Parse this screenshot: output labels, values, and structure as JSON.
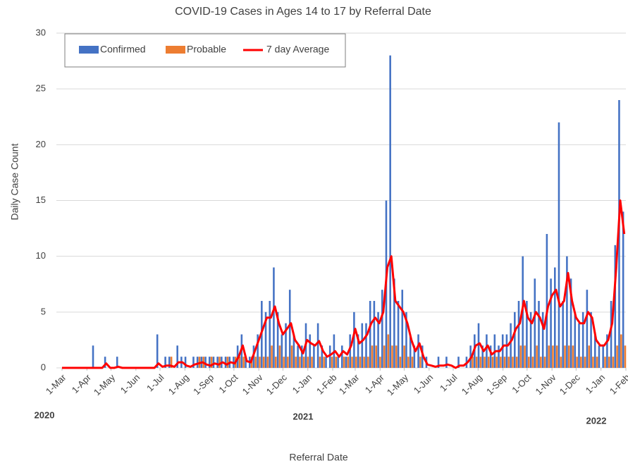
{
  "chart_data": {
    "type": "bar_line",
    "title": "COVID-19 Cases in Ages 14 to 17 by Referral Date",
    "x_label": "Referral Date",
    "y_label": "Daily Case Count",
    "annotations": [
      "2020",
      "2021",
      "2022"
    ],
    "x": [
      0,
      5,
      10,
      15,
      20,
      25,
      30,
      35,
      40,
      45,
      50,
      55,
      60,
      65,
      70,
      75,
      80,
      85,
      90,
      95,
      100,
      105,
      110,
      115,
      120,
      125,
      130,
      135,
      140,
      145,
      150,
      155,
      160,
      165,
      170,
      175,
      180,
      185,
      190,
      195,
      200,
      205,
      210,
      215,
      220,
      225,
      230,
      235,
      240,
      245,
      250,
      255,
      260,
      265,
      270,
      275,
      280,
      285,
      290,
      295,
      300,
      305,
      310,
      315,
      320,
      325,
      330,
      335,
      340,
      345,
      350,
      355,
      360,
      365,
      370,
      375,
      380,
      385,
      390,
      395,
      400,
      405,
      410,
      415,
      420,
      425,
      430,
      435,
      440,
      445,
      450,
      455,
      460,
      465,
      470,
      475,
      480,
      485,
      490,
      495,
      500,
      505,
      510,
      515,
      520,
      525,
      530,
      535,
      540,
      545,
      550,
      555,
      560,
      565,
      570,
      575,
      580,
      585,
      590,
      595,
      600,
      605,
      610,
      615,
      620,
      625,
      630,
      635,
      640,
      645,
      650,
      655,
      660,
      665,
      670,
      675,
      680,
      685,
      690,
      695,
      700
    ],
    "series": [
      {
        "name": "Confirmed",
        "color": "#4472c4",
        "values": [
          0,
          0,
          0,
          0,
          0,
          0,
          0,
          0,
          2,
          0,
          0,
          1,
          0,
          0,
          1,
          0,
          0,
          0,
          0,
          0,
          0,
          0,
          0,
          0,
          3,
          0,
          1,
          1,
          0,
          2,
          1,
          1,
          0,
          1,
          1,
          1,
          1,
          1,
          1,
          1,
          1,
          1,
          1,
          1,
          2,
          3,
          1,
          1,
          2,
          3,
          6,
          5,
          6,
          9,
          5,
          3,
          4,
          7,
          3,
          2,
          2,
          4,
          3,
          2,
          4,
          2,
          1,
          2,
          3,
          1,
          2,
          1,
          3,
          5,
          3,
          4,
          4,
          6,
          6,
          5,
          7,
          15,
          28,
          8,
          6,
          7,
          5,
          3,
          2,
          3,
          2,
          1,
          0,
          0,
          1,
          0,
          1,
          0,
          0,
          1,
          0,
          1,
          2,
          3,
          4,
          2,
          3,
          2,
          3,
          2,
          3,
          3,
          4,
          5,
          6,
          10,
          6,
          5,
          8,
          6,
          5,
          12,
          8,
          9,
          22,
          6,
          10,
          8,
          5,
          4,
          5,
          7,
          5,
          3,
          2,
          2,
          3,
          6,
          11,
          24,
          14
        ]
      },
      {
        "name": "Probable",
        "color": "#ed7d31",
        "values": [
          0,
          0,
          0,
          0,
          0,
          0,
          0,
          0,
          0,
          0,
          0,
          0,
          0,
          0,
          0,
          0,
          0,
          0,
          0,
          0,
          0,
          0,
          0,
          0,
          0,
          0,
          0,
          1,
          0,
          0,
          0,
          0,
          0,
          0,
          1,
          1,
          0,
          1,
          0,
          1,
          0,
          1,
          0,
          1,
          1,
          1,
          0,
          1,
          1,
          1,
          1,
          1,
          2,
          1,
          2,
          1,
          1,
          2,
          1,
          1,
          1,
          1,
          1,
          0,
          1,
          1,
          0,
          1,
          1,
          0,
          1,
          1,
          1,
          1,
          1,
          1,
          1,
          2,
          2,
          1,
          2,
          3,
          2,
          2,
          1,
          2,
          1,
          1,
          0,
          1,
          0,
          0,
          0,
          0,
          0,
          0,
          0,
          0,
          0,
          0,
          0,
          0,
          1,
          1,
          1,
          1,
          1,
          1,
          1,
          1,
          1,
          1,
          1,
          1,
          2,
          2,
          1,
          1,
          2,
          1,
          1,
          2,
          2,
          2,
          1,
          2,
          2,
          2,
          1,
          1,
          1,
          2,
          1,
          1,
          0,
          1,
          1,
          1,
          2,
          3,
          2
        ]
      },
      {
        "name": "7 day Average",
        "color": "#ff0000",
        "values": [
          0,
          0,
          0,
          0,
          0,
          0,
          0,
          0,
          0,
          0,
          0,
          0.4,
          0,
          0,
          0.1,
          0,
          0,
          0,
          0,
          0,
          0,
          0,
          0,
          0,
          0.4,
          0.1,
          0.2,
          0.2,
          0.1,
          0.5,
          0.5,
          0.2,
          0.1,
          0.3,
          0.4,
          0.5,
          0.3,
          0.2,
          0.4,
          0.3,
          0.5,
          0.3,
          0.5,
          0.4,
          1,
          2,
          0.6,
          0.5,
          1.5,
          2.5,
          3.5,
          4.5,
          4.5,
          5.5,
          4,
          3,
          3.5,
          4,
          2.5,
          2,
          1.3,
          2.5,
          2.2,
          2,
          2.4,
          1.5,
          1,
          1.2,
          1.5,
          1,
          1.5,
          1.2,
          2,
          3.5,
          2.2,
          2.5,
          3,
          4,
          4.5,
          4,
          5,
          9,
          10,
          6,
          5.5,
          5,
          4,
          2.5,
          1.5,
          2.2,
          1,
          0.3,
          0.2,
          0.1,
          0.2,
          0.2,
          0.3,
          0.2,
          0,
          0.2,
          0.2,
          0.5,
          1,
          2,
          2.2,
          1.5,
          2,
          1.2,
          1.5,
          1.5,
          2,
          2,
          2.5,
          3.5,
          4,
          6,
          4.5,
          4,
          5,
          4.5,
          3.5,
          5.5,
          6.5,
          7,
          5.5,
          6,
          8.5,
          6,
          4.5,
          4,
          4,
          5,
          4.5,
          2.5,
          2,
          2,
          2.5,
          4,
          9,
          15,
          12
        ]
      }
    ],
    "xlim": [
      0,
      702
    ],
    "xticks": [
      {
        "value": 0,
        "label": "1-Mar"
      },
      {
        "value": 31,
        "label": "1-Apr"
      },
      {
        "value": 61,
        "label": "1-May"
      },
      {
        "value": 92,
        "label": "1-Jun"
      },
      {
        "value": 122,
        "label": "1-Jul"
      },
      {
        "value": 153,
        "label": "1-Aug"
      },
      {
        "value": 184,
        "label": "1-Sep"
      },
      {
        "value": 214,
        "label": "1-Oct"
      },
      {
        "value": 245,
        "label": "1-Nov"
      },
      {
        "value": 275,
        "label": "1-Dec"
      },
      {
        "value": 306,
        "label": "1-Jan"
      },
      {
        "value": 337,
        "label": "1-Feb"
      },
      {
        "value": 365,
        "label": "1-Mar"
      },
      {
        "value": 396,
        "label": "1-Apr"
      },
      {
        "value": 426,
        "label": "1-May"
      },
      {
        "value": 457,
        "label": "1-Jun"
      },
      {
        "value": 487,
        "label": "1-Jul"
      },
      {
        "value": 518,
        "label": "1-Aug"
      },
      {
        "value": 549,
        "label": "1-Sep"
      },
      {
        "value": 579,
        "label": "1-Oct"
      },
      {
        "value": 610,
        "label": "1-Nov"
      },
      {
        "value": 640,
        "label": "1-Dec"
      },
      {
        "value": 671,
        "label": "1-Jan"
      },
      {
        "value": 702,
        "label": "1-Feb"
      }
    ],
    "ylim": [
      0,
      30
    ],
    "yticks": [
      0,
      5,
      10,
      15,
      20,
      25,
      30
    ],
    "grid": true,
    "legend": "top-left"
  }
}
